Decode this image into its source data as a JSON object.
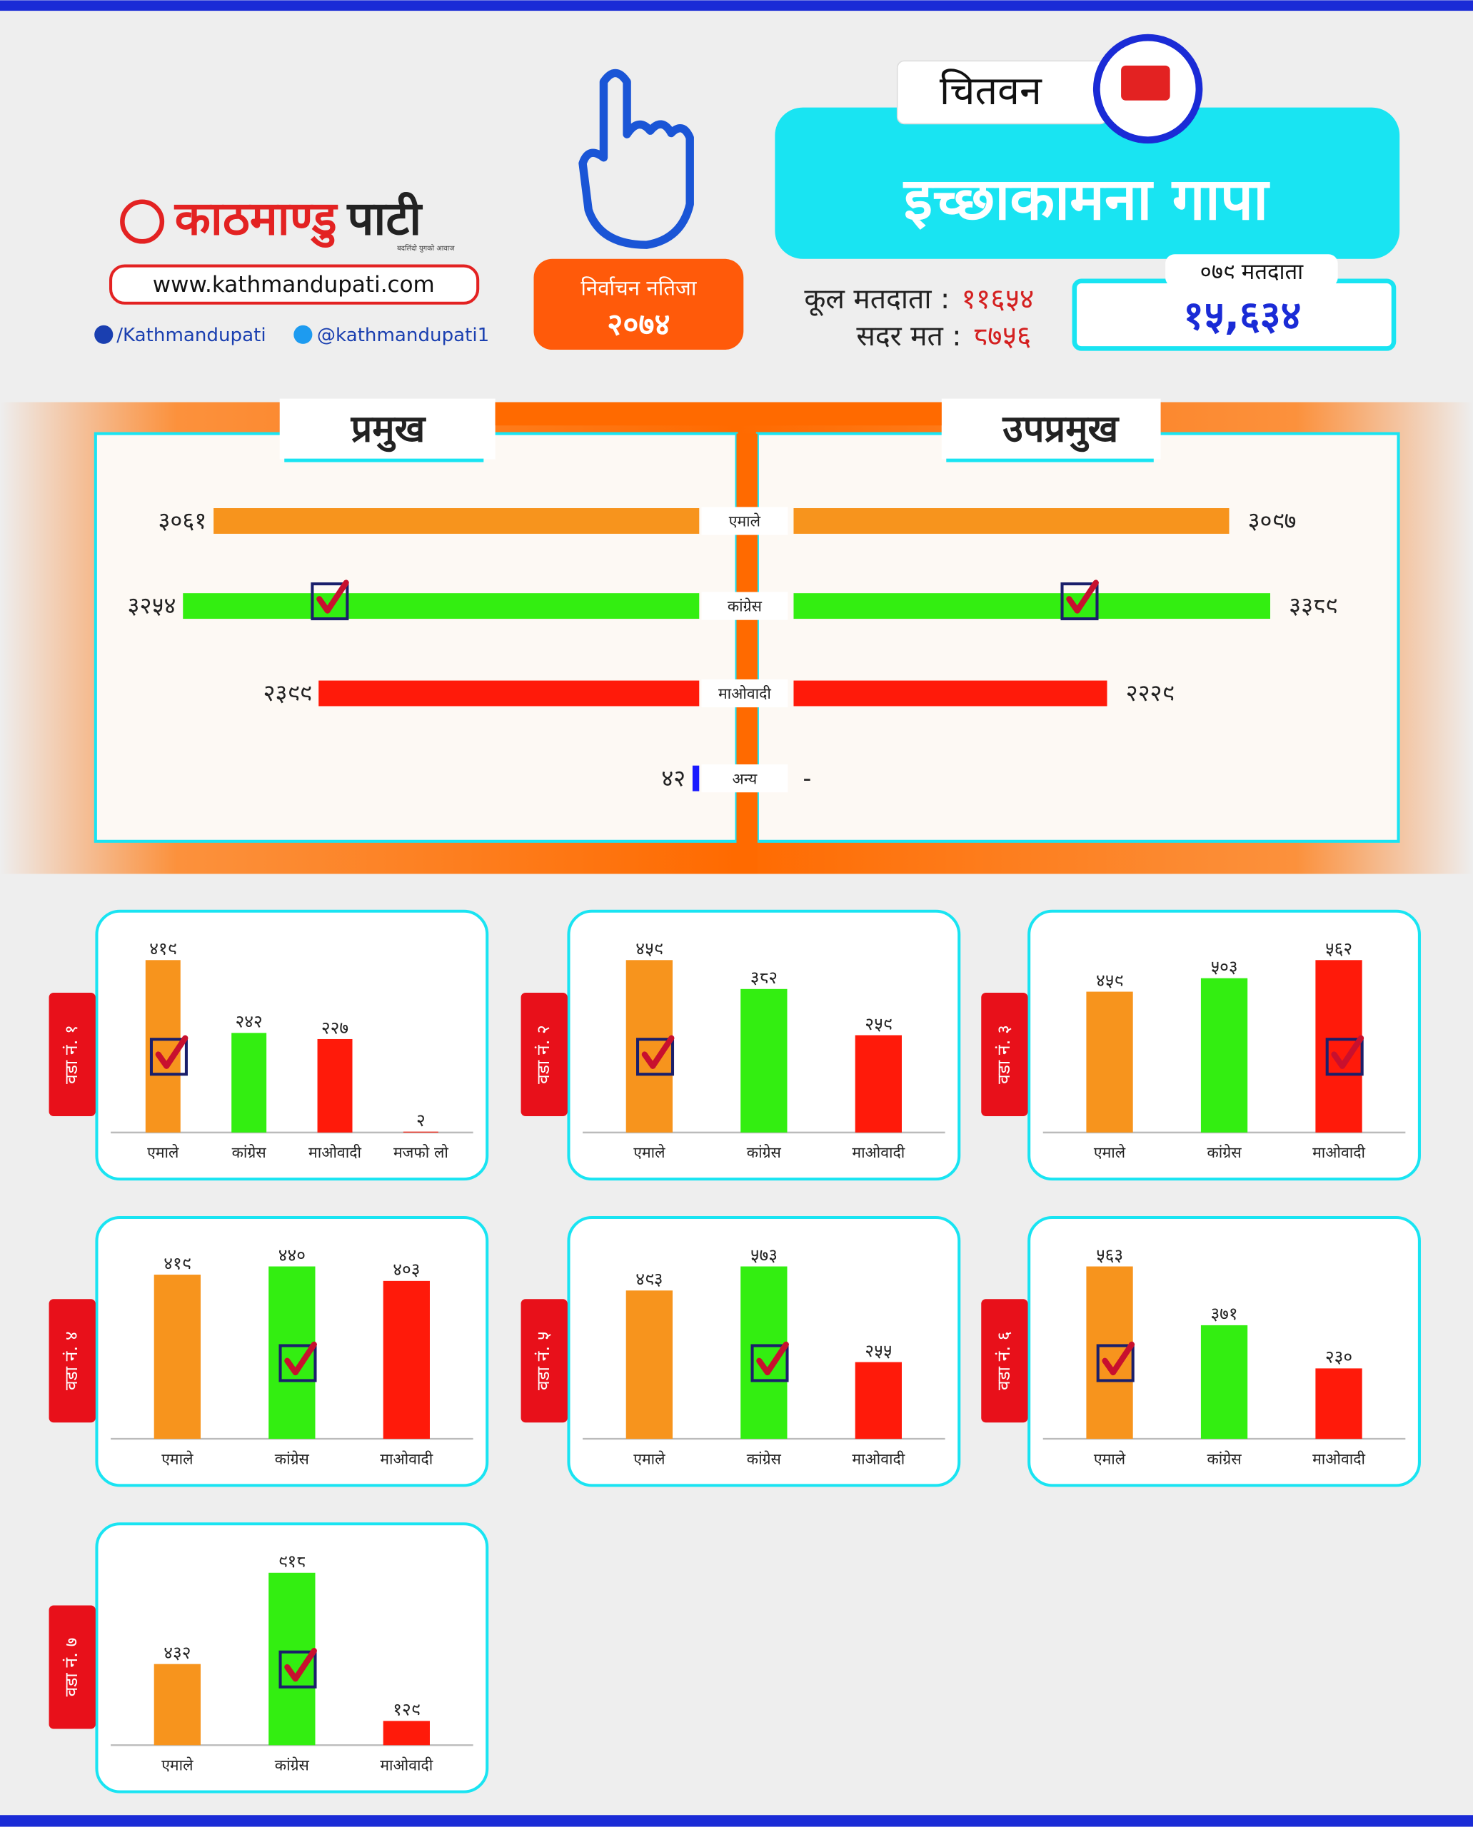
{
  "header": {
    "logo_first": "काठमाण्डु",
    "logo_second": "पाटी",
    "tagline": "बदलिंदो युगको आवाज",
    "website": "www.kathmandupati.com",
    "facebook": "/Kathmandupati",
    "twitter": "@kathmandupati1",
    "badge_title": "निर्वाचन नतिजा",
    "badge_year": "२०७४",
    "district": "चितवन",
    "municipality": "इच्छाकामना गापा",
    "total_voters_label": "कूल मतदाता :",
    "total_voters": "११६५४",
    "valid_votes_label": "सदर मत :",
    "valid_votes": "८७५६",
    "voters_079_label": "०७९ मतदाता",
    "voters_079": "१५,६३४"
  },
  "chart_data": [
    {
      "type": "barh",
      "title": "प्रमुख",
      "grow": "left",
      "categories": [
        "एमाले",
        "कांग्रेस",
        "माओवादी",
        "अन्य"
      ],
      "values": [
        3061,
        3254,
        2399,
        42
      ],
      "value_labels": [
        "३०६१",
        "३२५४",
        "२३९९",
        "४२"
      ],
      "colors": [
        "#f7941d",
        "#33ee11",
        "#ff1a0a",
        "#1a1aff"
      ],
      "winner": 1
    },
    {
      "type": "barh",
      "title": "उपप्रमुख",
      "grow": "right",
      "values": [
        3097,
        3389,
        2229,
        null
      ],
      "value_labels": [
        "३०९७",
        "३३८९",
        "२२२९",
        "-"
      ],
      "colors": [
        "#f7941d",
        "#33ee11",
        "#ff1a0a",
        "#1a1aff"
      ],
      "winner": 1
    },
    {
      "type": "bar",
      "title": "वडा नं. १",
      "categories": [
        "एमाले",
        "कांग्रेस",
        "माओवादी",
        "मजफो लो"
      ],
      "values": [
        419,
        242,
        227,
        2
      ],
      "value_labels": [
        "४१९",
        "२४२",
        "२२७",
        "२"
      ],
      "colors": [
        "#f7941d",
        "#33ee11",
        "#ff1a0a",
        "#ff1a0a"
      ],
      "winner": 0
    },
    {
      "type": "bar",
      "title": "वडा नं. २",
      "categories": [
        "एमाले",
        "कांग्रेस",
        "माओवादी"
      ],
      "values": [
        459,
        382,
        259
      ],
      "value_labels": [
        "४५९",
        "३८२",
        "२५९"
      ],
      "colors": [
        "#f7941d",
        "#33ee11",
        "#ff1a0a"
      ],
      "winner": 0
    },
    {
      "type": "bar",
      "title": "वडा नं. ३",
      "categories": [
        "एमाले",
        "कांग्रेस",
        "माओवादी"
      ],
      "values": [
        459,
        503,
        562
      ],
      "value_labels": [
        "४५९",
        "५०३",
        "५६२"
      ],
      "colors": [
        "#f7941d",
        "#33ee11",
        "#ff1a0a"
      ],
      "winner": 2
    },
    {
      "type": "bar",
      "title": "वडा नं. ४",
      "categories": [
        "एमाले",
        "कांग्रेस",
        "माओवादी"
      ],
      "values": [
        419,
        440,
        403
      ],
      "value_labels": [
        "४१९",
        "४४०",
        "४०३"
      ],
      "colors": [
        "#f7941d",
        "#33ee11",
        "#ff1a0a"
      ],
      "winner": 1
    },
    {
      "type": "bar",
      "title": "वडा नं. ५",
      "categories": [
        "एमाले",
        "कांग्रेस",
        "माओवादी"
      ],
      "values": [
        493,
        573,
        255
      ],
      "value_labels": [
        "४९३",
        "५७३",
        "२५५"
      ],
      "colors": [
        "#f7941d",
        "#33ee11",
        "#ff1a0a"
      ],
      "winner": 1
    },
    {
      "type": "bar",
      "title": "वडा नं. ६",
      "categories": [
        "एमाले",
        "कांग्रेस",
        "माओवादी"
      ],
      "values": [
        563,
        371,
        230
      ],
      "value_labels": [
        "५६३",
        "३७१",
        "२३०"
      ],
      "colors": [
        "#f7941d",
        "#33ee11",
        "#ff1a0a"
      ],
      "winner": 0
    },
    {
      "type": "bar",
      "title": "वडा नं. ७",
      "categories": [
        "एमाले",
        "कांग्रेस",
        "माओवादी"
      ],
      "values": [
        432,
        918,
        129
      ],
      "value_labels": [
        "४३२",
        "९१८",
        "१२९"
      ],
      "colors": [
        "#f7941d",
        "#33ee11",
        "#ff1a0a"
      ],
      "winner": 1
    }
  ]
}
